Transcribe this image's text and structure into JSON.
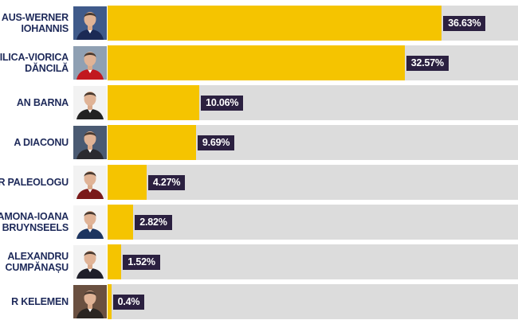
{
  "chart_data": {
    "type": "bar",
    "orientation": "horizontal",
    "grid": false,
    "bar_color": "#f5c400",
    "track_color": "#dcdcdc",
    "label_background": "#2b2040",
    "name_color": "#1e2a5a",
    "xlim": [
      0,
      45
    ],
    "categories": [
      "AUS-WERNER IOHANNIS",
      "ILICA-VIORICA DĂNCILĂ",
      "AN BARNA",
      "A DIACONU",
      "R PALEOLOGU",
      "AMONA-IOANA BRUYNSEELS",
      "ALEXANDRU CUMPĂNAȘU",
      "R KELEMEN"
    ],
    "values": [
      36.63,
      32.57,
      10.06,
      9.69,
      4.27,
      2.82,
      1.52,
      0.4
    ],
    "value_labels": [
      "36.63%",
      "32.57%",
      "10.06%",
      "9.69%",
      "4.27%",
      "2.82%",
      "1.52%",
      "0.4%"
    ],
    "rows": [
      {
        "name_lines": [
          "AUS-WERNER",
          "IOHANNIS"
        ],
        "photo_icon": "candidate-portrait-icon",
        "photo_bg": "#3f5a8a",
        "shirt": "#1b2a55"
      },
      {
        "name_lines": [
          "ILICA-VIORICA",
          "DĂNCILĂ"
        ],
        "photo_icon": "candidate-portrait-icon",
        "photo_bg": "#8fa0b3",
        "shirt": "#c2181f"
      },
      {
        "name_lines": [
          "AN BARNA"
        ],
        "photo_icon": "candidate-portrait-icon",
        "photo_bg": "#f2f2f2",
        "shirt": "#222222"
      },
      {
        "name_lines": [
          "A DIACONU"
        ],
        "photo_icon": "candidate-portrait-icon",
        "photo_bg": "#4a5a72",
        "shirt": "#2a2a30"
      },
      {
        "name_lines": [
          "R PALEOLOGU"
        ],
        "photo_icon": "candidate-portrait-icon",
        "photo_bg": "#f2f2f2",
        "shirt": "#7a1a1a"
      },
      {
        "name_lines": [
          "AMONA-IOANA",
          "BRUYNSEELS"
        ],
        "photo_icon": "candidate-portrait-icon",
        "photo_bg": "#f5f5f5",
        "shirt": "#1d3560"
      },
      {
        "name_lines": [
          "ALEXANDRU",
          "CUMPĂNAȘU"
        ],
        "photo_icon": "candidate-portrait-icon",
        "photo_bg": "#f2f2f2",
        "shirt": "#1f1f2a"
      },
      {
        "name_lines": [
          "R KELEMEN"
        ],
        "photo_icon": "candidate-portrait-icon",
        "photo_bg": "#6a5040",
        "shirt": "#2a2522"
      }
    ]
  }
}
